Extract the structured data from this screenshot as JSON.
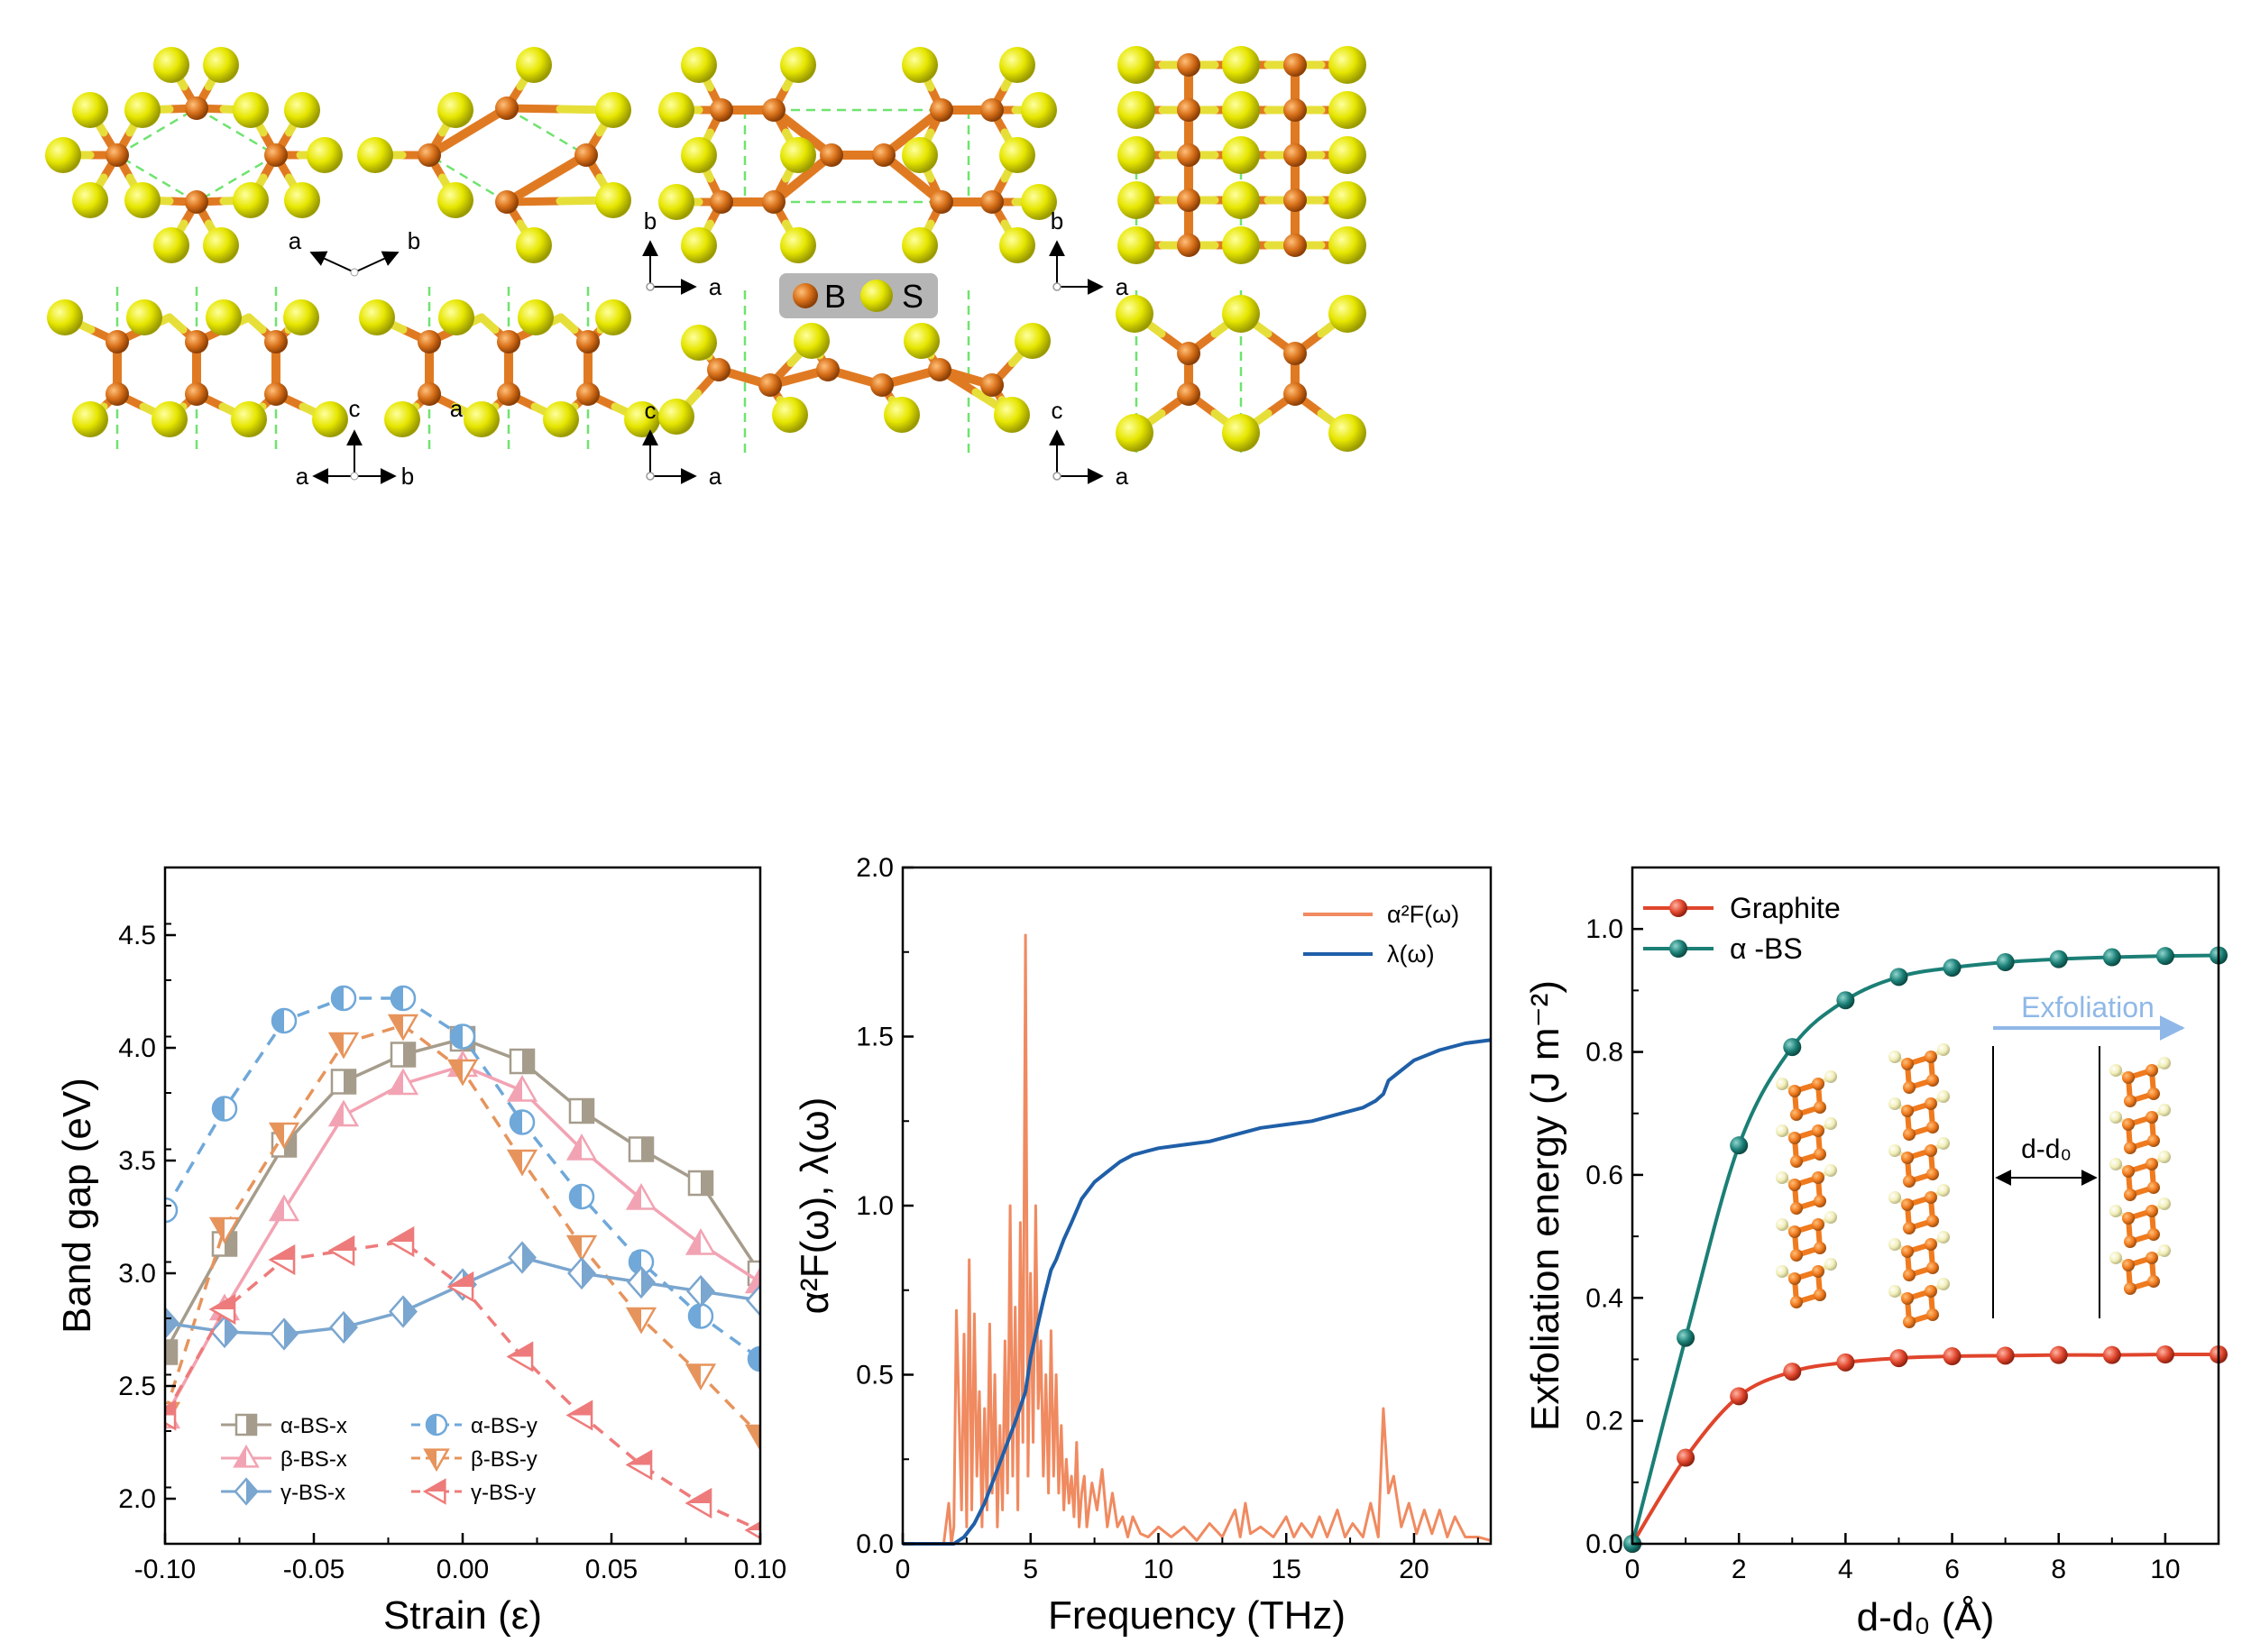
{
  "colors": {
    "boron": "#d9711a",
    "sulfur": "#e6e600",
    "bond_s": "#e2d94a",
    "cell": "#6fe36f",
    "legend_bg": "#b5b5b5"
  },
  "structures": {
    "legend": {
      "b_label": "B",
      "s_label": "S"
    },
    "axis_labels": {
      "a": "a",
      "b": "b",
      "c": "c"
    }
  },
  "chart_data": [
    {
      "type": "line",
      "ylabel": "Band gap (eV)",
      "xlabel": "Strain (ε)",
      "xlim": [
        -0.1,
        0.1
      ],
      "ylim": [
        1.8,
        4.8
      ],
      "xticks": [
        "-0.10",
        "-0.05",
        "0.00",
        "0.05",
        "0.10"
      ],
      "yticks": [
        "2.0",
        "2.5",
        "3.0",
        "3.5",
        "4.0",
        "4.5"
      ],
      "legend_position": "bottom-left",
      "x": [
        -0.1,
        -0.08,
        -0.06,
        -0.04,
        -0.02,
        0.0,
        0.02,
        0.04,
        0.06,
        0.08,
        0.1
      ],
      "series": [
        {
          "name": "α-BS-x",
          "color": "#a59c8c",
          "marker": "square",
          "dashed": false,
          "values": [
            2.65,
            3.13,
            3.57,
            3.85,
            3.97,
            4.04,
            3.94,
            3.72,
            3.55,
            3.4,
            3.0
          ]
        },
        {
          "name": "α-BS-y",
          "color": "#6fa8d9",
          "marker": "circle",
          "dashed": true,
          "values": [
            3.28,
            3.73,
            4.12,
            4.22,
            4.22,
            4.05,
            3.67,
            3.34,
            3.05,
            2.81,
            2.62
          ]
        },
        {
          "name": "β-BS-x",
          "color": "#f2a3b3",
          "marker": "triangle-up",
          "dashed": false,
          "values": [
            2.36,
            2.84,
            3.28,
            3.7,
            3.84,
            3.92,
            3.81,
            3.55,
            3.33,
            3.13,
            2.96
          ]
        },
        {
          "name": "β-BS-y",
          "color": "#e6945c",
          "marker": "triangle-down",
          "dashed": true,
          "values": [
            2.38,
            3.2,
            3.62,
            4.02,
            4.1,
            3.9,
            3.5,
            3.12,
            2.8,
            2.55,
            2.28
          ]
        },
        {
          "name": "γ-BS-x",
          "color": "#7aa6cf",
          "marker": "diamond",
          "dashed": false,
          "values": [
            2.78,
            2.74,
            2.73,
            2.76,
            2.83,
            2.95,
            3.07,
            3.0,
            2.96,
            2.92,
            2.88
          ]
        },
        {
          "name": "γ-BS-y",
          "color": "#ee7b7b",
          "marker": "triangle-left",
          "dashed": true,
          "values": [
            2.37,
            2.84,
            3.06,
            3.1,
            3.14,
            2.94,
            2.63,
            2.37,
            2.15,
            1.98,
            1.86
          ]
        }
      ]
    },
    {
      "type": "line",
      "ylabel": "α²F(ω), λ(ω)",
      "xlabel": "Frequency (THz)",
      "xlim": [
        0,
        23
      ],
      "ylim": [
        0,
        2.0
      ],
      "xticks": [
        "0",
        "5",
        "10",
        "15",
        "20"
      ],
      "yticks": [
        "0.0",
        "0.5",
        "1.0",
        "1.5",
        "2.0"
      ],
      "legend_position": "top-right",
      "series": [
        {
          "name": "α²F(ω)",
          "color": "#f08a60",
          "x": [
            0,
            1.6,
            1.8,
            1.9,
            2.0,
            2.1,
            2.3,
            2.4,
            2.5,
            2.6,
            2.7,
            2.8,
            2.9,
            3.0,
            3.1,
            3.2,
            3.3,
            3.4,
            3.5,
            3.6,
            3.7,
            3.8,
            3.9,
            4.0,
            4.1,
            4.2,
            4.3,
            4.4,
            4.5,
            4.6,
            4.7,
            4.8,
            4.9,
            5.0,
            5.1,
            5.2,
            5.3,
            5.4,
            5.5,
            5.6,
            5.7,
            5.8,
            5.9,
            6.0,
            6.1,
            6.2,
            6.3,
            6.4,
            6.5,
            6.6,
            6.7,
            6.8,
            6.9,
            7.0,
            7.1,
            7.2,
            7.4,
            7.6,
            7.8,
            8.0,
            8.2,
            8.4,
            8.6,
            8.8,
            9.0,
            9.3,
            9.6,
            10.0,
            10.5,
            11.0,
            11.5,
            12.0,
            12.5,
            13.0,
            13.2,
            13.4,
            13.6,
            14.0,
            14.5,
            15.0,
            15.3,
            15.6,
            16.0,
            16.3,
            16.6,
            17.0,
            17.3,
            17.6,
            18.0,
            18.3,
            18.6,
            18.8,
            19.0,
            19.2,
            19.5,
            19.8,
            20.1,
            20.4,
            20.7,
            21.0,
            21.3,
            21.6,
            22.0,
            22.5,
            23.0
          ],
          "values": [
            0,
            0,
            0.12,
            0,
            0.05,
            0.69,
            0.1,
            0.62,
            0.05,
            0.84,
            0.1,
            0.68,
            0.2,
            0.45,
            0.05,
            0.4,
            0.1,
            0.65,
            0.15,
            0.5,
            0.05,
            0.35,
            0.1,
            0.6,
            0.15,
            1.0,
            0.2,
            0.7,
            0.1,
            0.95,
            0.3,
            1.8,
            0.2,
            0.8,
            0.3,
            1.0,
            0.4,
            0.6,
            0.2,
            0.5,
            0.15,
            0.63,
            0.2,
            0.5,
            0.15,
            0.35,
            0.1,
            0.25,
            0.12,
            0.2,
            0.08,
            0.3,
            0.05,
            0.15,
            0.2,
            0.05,
            0.18,
            0.1,
            0.22,
            0.05,
            0.15,
            0.05,
            0.08,
            0.02,
            0.08,
            0.03,
            0.02,
            0.05,
            0.02,
            0.05,
            0.01,
            0.06,
            0.02,
            0.1,
            0.02,
            0.12,
            0.03,
            0.05,
            0.02,
            0.08,
            0.02,
            0.06,
            0.02,
            0.08,
            0.02,
            0.1,
            0.02,
            0.06,
            0.02,
            0.12,
            0.02,
            0.4,
            0.15,
            0.2,
            0.05,
            0.12,
            0.03,
            0.1,
            0.03,
            0.1,
            0.02,
            0.08,
            0.02,
            0.02,
            0.01
          ]
        },
        {
          "name": "λ(ω)",
          "color": "#1f5fa8",
          "x": [
            0,
            2.0,
            2.4,
            2.8,
            3.2,
            3.6,
            4.0,
            4.4,
            4.8,
            5.0,
            5.2,
            5.5,
            5.8,
            6.0,
            6.3,
            6.6,
            7.0,
            7.5,
            8.0,
            8.5,
            9.0,
            9.5,
            10.0,
            11.0,
            12.0,
            13.0,
            14.0,
            15.0,
            16.0,
            17.0,
            18.0,
            18.5,
            18.8,
            19.0,
            19.5,
            20.0,
            21.0,
            22.0,
            23.0
          ],
          "values": [
            0,
            0,
            0.02,
            0.06,
            0.12,
            0.2,
            0.28,
            0.36,
            0.45,
            0.55,
            0.62,
            0.72,
            0.81,
            0.84,
            0.9,
            0.95,
            1.02,
            1.07,
            1.1,
            1.13,
            1.15,
            1.16,
            1.17,
            1.18,
            1.19,
            1.21,
            1.23,
            1.24,
            1.25,
            1.27,
            1.29,
            1.31,
            1.33,
            1.37,
            1.4,
            1.43,
            1.46,
            1.48,
            1.49
          ]
        }
      ]
    },
    {
      "type": "line",
      "ylabel": "Exfoliation energy (J m⁻²)",
      "xlabel": "d-d₀ (Å)",
      "xlim": [
        0,
        11
      ],
      "ylim": [
        0,
        1.1
      ],
      "xticks": [
        "0",
        "2",
        "4",
        "6",
        "8",
        "10"
      ],
      "yticks": [
        "0.0",
        "0.2",
        "0.4",
        "0.6",
        "0.8",
        "1.0"
      ],
      "legend_position": "top-left",
      "annotations": [
        "Exfoliation",
        "d-d₀"
      ],
      "x": [
        0,
        1,
        2,
        3,
        4,
        5,
        6,
        7,
        8,
        9,
        10,
        11
      ],
      "series": [
        {
          "name": "Graphite",
          "color": "#e0452c",
          "values": [
            0,
            0.14,
            0.24,
            0.28,
            0.295,
            0.302,
            0.305,
            0.306,
            0.307,
            0.307,
            0.308,
            0.308
          ]
        },
        {
          "name": "α -BS",
          "color": "#1b7f76",
          "values": [
            0,
            0.335,
            0.648,
            0.808,
            0.884,
            0.922,
            0.937,
            0.946,
            0.951,
            0.954,
            0.956,
            0.957
          ]
        }
      ]
    }
  ]
}
